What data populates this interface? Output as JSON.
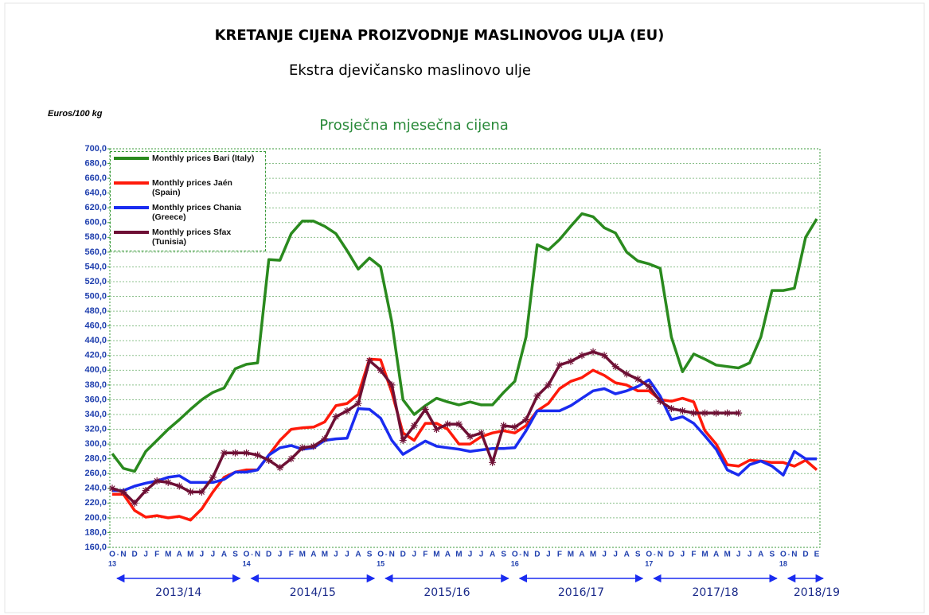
{
  "chart_data": {
    "type": "line",
    "title": "KRETANJE CIJENA PROIZVODNJE MASLINOVOG ULJA (EU)",
    "subtitle": "Ekstra djevičansko maslinovo ulje",
    "chart_title": "Prosječna mjesečna cijena",
    "ylabel": "Euros/100 kg",
    "categories": [
      "O",
      "N",
      "D",
      "J",
      "F",
      "M",
      "A",
      "M",
      "J",
      "J",
      "A",
      "S",
      "O",
      "N",
      "D",
      "J",
      "F",
      "M",
      "A",
      "M",
      "J",
      "J",
      "A",
      "S",
      "O",
      "N",
      "D",
      "J",
      "F",
      "M",
      "A",
      "M",
      "J",
      "J",
      "A",
      "S",
      "O",
      "N",
      "D",
      "J",
      "F",
      "M",
      "A",
      "M",
      "J",
      "J",
      "A",
      "S",
      "O",
      "N",
      "D",
      "J",
      "F",
      "M",
      "A",
      "M",
      "J",
      "J",
      "A",
      "S",
      "O",
      "N",
      "D",
      "E"
    ],
    "category_years": [
      "13",
      null,
      null,
      null,
      null,
      null,
      null,
      null,
      null,
      null,
      null,
      null,
      "14",
      null,
      null,
      null,
      null,
      null,
      null,
      null,
      null,
      null,
      null,
      null,
      "15",
      null,
      null,
      null,
      null,
      null,
      null,
      null,
      null,
      null,
      null,
      null,
      "16",
      null,
      null,
      null,
      null,
      null,
      null,
      null,
      null,
      null,
      null,
      null,
      "17",
      null,
      null,
      null,
      null,
      null,
      null,
      null,
      null,
      null,
      null,
      null,
      "18",
      null,
      null,
      null
    ],
    "periods": [
      "2013/14",
      "2014/15",
      "2015/16",
      "2016/17",
      "2017/18",
      "2018/19"
    ],
    "ylim": [
      160,
      700
    ],
    "yticks": [
      {
        "value": 160,
        "label": "160,0"
      },
      {
        "value": 180,
        "label": "180,0"
      },
      {
        "value": 200,
        "label": "200,0"
      },
      {
        "value": 220,
        "label": "220,0"
      },
      {
        "value": 240,
        "label": "240,0"
      },
      {
        "value": 260,
        "label": "260,0"
      },
      {
        "value": 280,
        "label": "280,0"
      },
      {
        "value": 300,
        "label": "300,0"
      },
      {
        "value": 320,
        "label": "320,0"
      },
      {
        "value": 340,
        "label": "340,0"
      },
      {
        "value": 360,
        "label": "360,0"
      },
      {
        "value": 380,
        "label": "380,0"
      },
      {
        "value": 400,
        "label": "400,0"
      },
      {
        "value": 420,
        "label": "420,0"
      },
      {
        "value": 440,
        "label": "440,0"
      },
      {
        "value": 460,
        "label": "460,0"
      },
      {
        "value": 480,
        "label": "480,0"
      },
      {
        "value": 500,
        "label": "500,0"
      },
      {
        "value": 520,
        "label": "520,0"
      },
      {
        "value": 540,
        "label": "540,0"
      },
      {
        "value": 560,
        "label": "560,0"
      },
      {
        "value": 580,
        "label": "580,0"
      },
      {
        "value": 600,
        "label": "600,0"
      },
      {
        "value": 620,
        "label": "620,0"
      },
      {
        "value": 640,
        "label": "640,0"
      },
      {
        "value": 660,
        "label": "660,0"
      },
      {
        "value": 680,
        "label": "680,0"
      },
      {
        "value": 700,
        "label": "700,0"
      }
    ],
    "grid": true,
    "legend": "top-left",
    "series": [
      {
        "name": "Monthly prices Bari (Italy)",
        "color": "#2a8a1e",
        "values": [
          287,
          267,
          263,
          290,
          305,
          320,
          333,
          347,
          360,
          370,
          376,
          402,
          408,
          410,
          550,
          549,
          585,
          602,
          602,
          595,
          585,
          562,
          537,
          552,
          540,
          465,
          360,
          340,
          352,
          362,
          357,
          353,
          357,
          353,
          353,
          370,
          385,
          445,
          570,
          563,
          577,
          595,
          612,
          608,
          593,
          586,
          560,
          548,
          544,
          538,
          445,
          398,
          422,
          415,
          407,
          405,
          403,
          410,
          445,
          508,
          508,
          511,
          580,
          605
        ]
      },
      {
        "name": "Monthly prices Jaén (Spain)",
        "color": "#ff1a0a",
        "values": [
          232,
          232,
          210,
          201,
          203,
          200,
          202,
          197,
          212,
          235,
          255,
          262,
          265,
          265,
          285,
          305,
          320,
          322,
          323,
          330,
          352,
          355,
          367,
          415,
          414,
          370,
          315,
          305,
          328,
          328,
          320,
          300,
          300,
          310,
          315,
          318,
          315,
          325,
          345,
          355,
          375,
          385,
          390,
          400,
          393,
          383,
          380,
          372,
          372,
          360,
          358,
          362,
          357,
          318,
          300,
          272,
          270,
          278,
          277,
          275,
          275,
          270,
          278,
          265
        ]
      },
      {
        "name": "Monthly prices Chania (Greece)",
        "color": "#1a2cf0",
        "values": [
          237,
          237,
          243,
          247,
          250,
          255,
          257,
          248,
          248,
          248,
          252,
          262,
          262,
          265,
          285,
          295,
          298,
          293,
          295,
          305,
          307,
          308,
          348,
          347,
          335,
          305,
          286,
          295,
          304,
          297,
          295,
          293,
          290,
          292,
          294,
          294,
          295,
          318,
          345,
          345,
          345,
          352,
          362,
          372,
          375,
          368,
          372,
          378,
          387,
          365,
          333,
          337,
          328,
          311,
          293,
          265,
          258,
          272,
          277,
          270,
          258,
          290,
          280,
          280
        ]
      },
      {
        "name": "Monthly prices Sfax (Tunisia)",
        "color": "#6e1035",
        "marker": "star",
        "values": [
          240,
          235,
          220,
          237,
          250,
          248,
          243,
          235,
          235,
          255,
          288,
          288,
          288,
          285,
          278,
          268,
          280,
          295,
          297,
          307,
          337,
          345,
          355,
          413,
          400,
          380,
          305,
          325,
          347,
          320,
          327,
          327,
          310,
          315,
          275,
          325,
          323,
          333,
          365,
          380,
          407,
          412,
          420,
          425,
          420,
          405,
          395,
          388,
          378,
          358,
          348,
          345,
          342,
          342,
          342,
          342,
          342,
          null,
          null,
          null,
          null,
          null,
          null,
          null
        ]
      }
    ]
  }
}
